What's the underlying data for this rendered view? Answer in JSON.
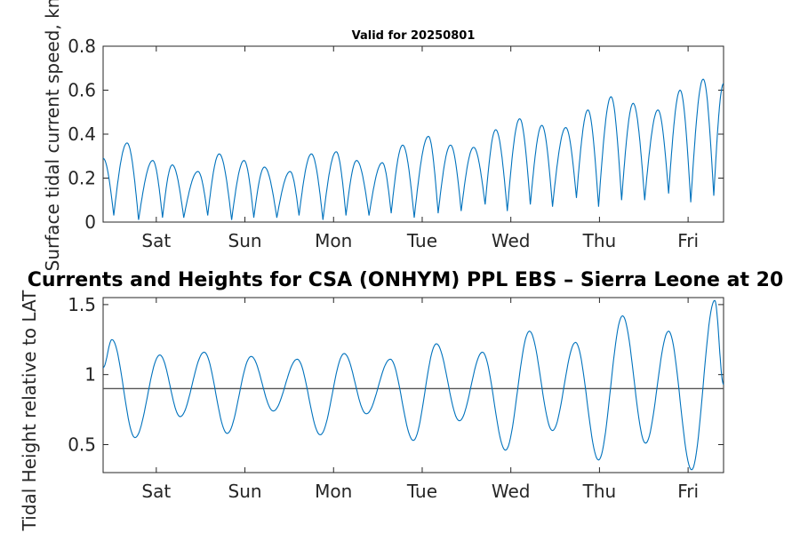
{
  "figure": {
    "main_title": "Currents and Heights for CSA (ONHYM) PPL EBS  – Sierra Leone at 20"
  },
  "chart_data": [
    {
      "type": "line",
      "title": "Valid for 20250801",
      "ylabel": "Surface tidal current speed, kn",
      "xlabel": "",
      "xlim": [
        0,
        7
      ],
      "ylim": [
        0,
        0.8
      ],
      "yticks": [
        0,
        0.2,
        0.4,
        0.6,
        0.8
      ],
      "ytick_labels": [
        "0",
        "0.2",
        "0.4",
        "0.6",
        "0.8"
      ],
      "xticks": [
        0.6,
        1.6,
        2.6,
        3.6,
        4.6,
        5.6,
        6.6
      ],
      "xtick_labels": [
        "Sat",
        "Sun",
        "Mon",
        "Tue",
        "Wed",
        "Thu",
        "Fri"
      ],
      "grid": false,
      "series": [
        {
          "color": "#0072BD",
          "peaks": [
            {
              "x": 0.0,
              "y": 0.29
            },
            {
              "x": 0.12,
              "y": 0.03
            },
            {
              "x": 0.27,
              "y": 0.36
            },
            {
              "x": 0.4,
              "y": 0.01
            },
            {
              "x": 0.56,
              "y": 0.28
            },
            {
              "x": 0.67,
              "y": 0.02
            },
            {
              "x": 0.78,
              "y": 0.26
            },
            {
              "x": 0.91,
              "y": 0.02
            },
            {
              "x": 1.07,
              "y": 0.23
            },
            {
              "x": 1.18,
              "y": 0.03
            },
            {
              "x": 1.31,
              "y": 0.31
            },
            {
              "x": 1.45,
              "y": 0.01
            },
            {
              "x": 1.59,
              "y": 0.28
            },
            {
              "x": 1.7,
              "y": 0.02
            },
            {
              "x": 1.82,
              "y": 0.25
            },
            {
              "x": 1.96,
              "y": 0.02
            },
            {
              "x": 2.11,
              "y": 0.23
            },
            {
              "x": 2.21,
              "y": 0.03
            },
            {
              "x": 2.35,
              "y": 0.31
            },
            {
              "x": 2.48,
              "y": 0.01
            },
            {
              "x": 2.63,
              "y": 0.32
            },
            {
              "x": 2.74,
              "y": 0.03
            },
            {
              "x": 2.86,
              "y": 0.28
            },
            {
              "x": 3.0,
              "y": 0.03
            },
            {
              "x": 3.15,
              "y": 0.27
            },
            {
              "x": 3.25,
              "y": 0.04
            },
            {
              "x": 3.38,
              "y": 0.35
            },
            {
              "x": 3.51,
              "y": 0.02
            },
            {
              "x": 3.67,
              "y": 0.39
            },
            {
              "x": 3.78,
              "y": 0.04
            },
            {
              "x": 3.92,
              "y": 0.35
            },
            {
              "x": 4.04,
              "y": 0.05
            },
            {
              "x": 4.18,
              "y": 0.34
            },
            {
              "x": 4.31,
              "y": 0.08
            },
            {
              "x": 4.43,
              "y": 0.42
            },
            {
              "x": 4.56,
              "y": 0.05
            },
            {
              "x": 4.7,
              "y": 0.47
            },
            {
              "x": 4.82,
              "y": 0.08
            },
            {
              "x": 4.95,
              "y": 0.44
            },
            {
              "x": 5.07,
              "y": 0.07
            },
            {
              "x": 5.22,
              "y": 0.43
            },
            {
              "x": 5.34,
              "y": 0.11
            },
            {
              "x": 5.47,
              "y": 0.51
            },
            {
              "x": 5.59,
              "y": 0.07
            },
            {
              "x": 5.73,
              "y": 0.57
            },
            {
              "x": 5.85,
              "y": 0.1
            },
            {
              "x": 5.98,
              "y": 0.54
            },
            {
              "x": 6.11,
              "y": 0.1
            },
            {
              "x": 6.26,
              "y": 0.51
            },
            {
              "x": 6.38,
              "y": 0.13
            },
            {
              "x": 6.51,
              "y": 0.6
            },
            {
              "x": 6.63,
              "y": 0.09
            },
            {
              "x": 6.77,
              "y": 0.65
            },
            {
              "x": 6.89,
              "y": 0.12
            },
            {
              "x": 7.0,
              "y": 0.63
            }
          ]
        }
      ]
    },
    {
      "type": "line",
      "title": "",
      "ylabel": "Tidal Height relative to LAT",
      "xlabel": "",
      "xlim": [
        0,
        7
      ],
      "ylim": [
        0.3,
        1.55
      ],
      "yticks": [
        0.5,
        1,
        1.5
      ],
      "ytick_labels": [
        "0.5",
        "1",
        "1.5"
      ],
      "xticks": [
        0.6,
        1.6,
        2.6,
        3.6,
        4.6,
        5.6,
        6.6
      ],
      "xtick_labels": [
        "Sat",
        "Sun",
        "Mon",
        "Tue",
        "Wed",
        "Thu",
        "Fri"
      ],
      "grid": false,
      "reference_line": {
        "y": 0.9,
        "color": "#555555"
      },
      "series": [
        {
          "color": "#0072BD",
          "peaks": [
            {
              "x": 0.0,
              "y": 1.05
            },
            {
              "x": 0.1,
              "y": 1.25
            },
            {
              "x": 0.36,
              "y": 0.55
            },
            {
              "x": 0.64,
              "y": 1.14
            },
            {
              "x": 0.87,
              "y": 0.7
            },
            {
              "x": 1.14,
              "y": 1.16
            },
            {
              "x": 1.4,
              "y": 0.58
            },
            {
              "x": 1.67,
              "y": 1.13
            },
            {
              "x": 1.92,
              "y": 0.74
            },
            {
              "x": 2.19,
              "y": 1.11
            },
            {
              "x": 2.45,
              "y": 0.57
            },
            {
              "x": 2.72,
              "y": 1.15
            },
            {
              "x": 2.97,
              "y": 0.72
            },
            {
              "x": 3.24,
              "y": 1.11
            },
            {
              "x": 3.5,
              "y": 0.53
            },
            {
              "x": 3.76,
              "y": 1.22
            },
            {
              "x": 4.02,
              "y": 0.67
            },
            {
              "x": 4.28,
              "y": 1.16
            },
            {
              "x": 4.54,
              "y": 0.46
            },
            {
              "x": 4.81,
              "y": 1.31
            },
            {
              "x": 5.07,
              "y": 0.6
            },
            {
              "x": 5.33,
              "y": 1.23
            },
            {
              "x": 5.59,
              "y": 0.39
            },
            {
              "x": 5.86,
              "y": 1.42
            },
            {
              "x": 6.12,
              "y": 0.51
            },
            {
              "x": 6.38,
              "y": 1.31
            },
            {
              "x": 6.64,
              "y": 0.32
            },
            {
              "x": 6.9,
              "y": 1.53
            },
            {
              "x": 7.0,
              "y": 0.93
            }
          ]
        }
      ]
    }
  ]
}
